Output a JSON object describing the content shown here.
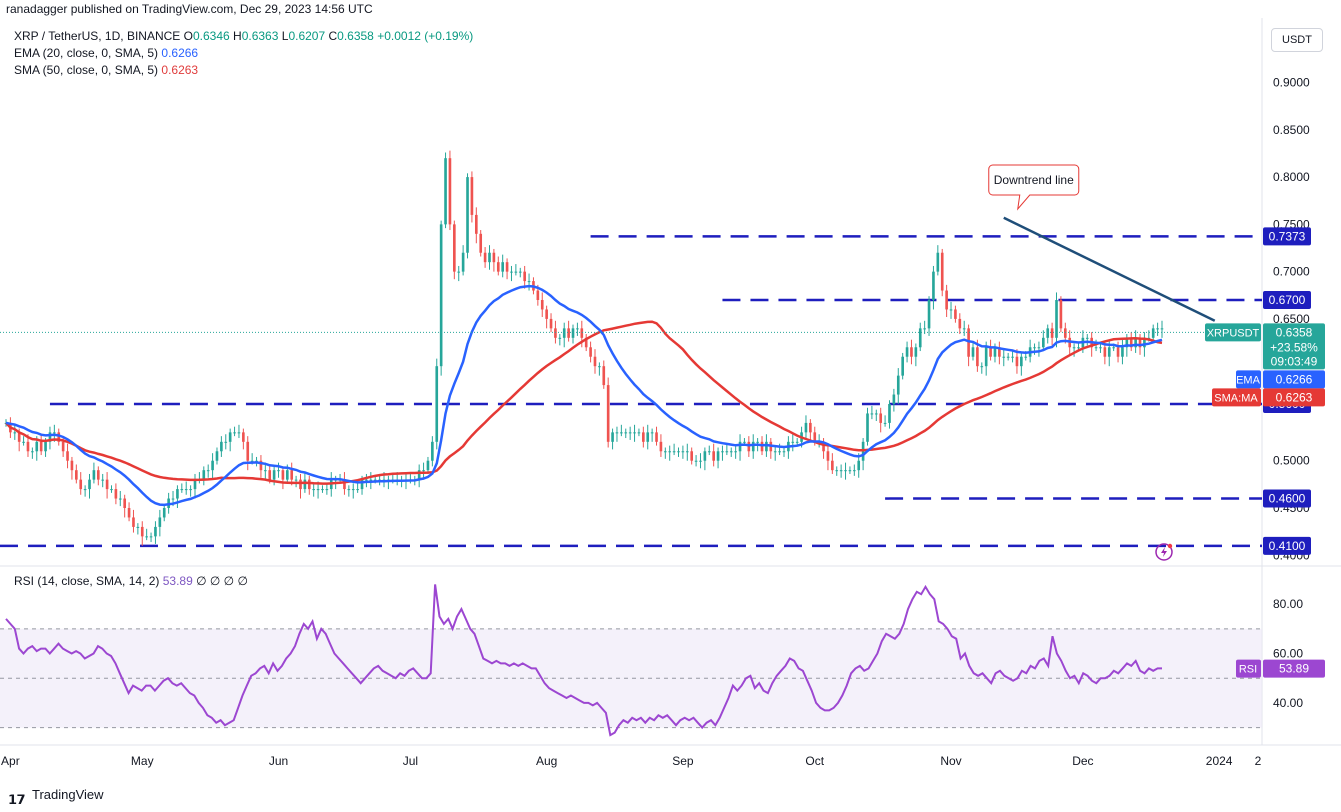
{
  "header": {
    "published": "ranadagger published on TradingView.com, Dec 29, 2023 14:56 UTC"
  },
  "legend": {
    "symbol": "XRP / TetherUS, 1D, BINANCE",
    "o_label": "O",
    "o": "0.6346",
    "h_label": "H",
    "h": "0.6363",
    "l_label": "L",
    "l": "0.6207",
    "c_label": "C",
    "c": "0.6358",
    "change": "+0.0012 (+0.19%)",
    "ema_label": "EMA (20, close, 0, SMA, 5)",
    "ema_value": "0.6266",
    "sma_label": "SMA (50, close, 0, SMA, 5)",
    "sma_value": "0.6263",
    "rsi_label": "RSI (14, close, SMA, 14, 2)",
    "rsi_value": "53.89",
    "rsi_extra": "∅ ∅ ∅ ∅"
  },
  "currency_button": "USDT",
  "footer": {
    "brand": "TradingView",
    "logo_icon": "tradingview-logo-icon"
  },
  "colors": {
    "up": "#26a69a",
    "down": "#ef5350",
    "ema": "#2962ff",
    "sma": "#e53935",
    "level_line": "#1e1ebe",
    "trend_line": "#1f4e79",
    "rsi": "#9c47d1",
    "rsi_band": "#ede7f6",
    "last_price": "#26a69a"
  },
  "chart_data": {
    "type": "candlestick",
    "symbol": "XRPUSDT",
    "timeframe": "1D",
    "x_labels": [
      "Apr",
      "May",
      "Jun",
      "Jul",
      "Aug",
      "Sep",
      "Oct",
      "Nov",
      "Dec",
      "2024",
      "2"
    ],
    "y_ticks": [
      "0.9000",
      "0.8500",
      "0.8000",
      "0.7500",
      "0.7000",
      "0.6500",
      "0.5000",
      "0.4500",
      "0.4000"
    ],
    "ylim": [
      0.395,
      0.945
    ],
    "close_series": [
      0.54,
      0.53,
      0.53,
      0.52,
      0.52,
      0.51,
      0.51,
      0.52,
      0.51,
      0.52,
      0.53,
      0.53,
      0.52,
      0.51,
      0.5,
      0.49,
      0.48,
      0.47,
      0.47,
      0.48,
      0.49,
      0.48,
      0.48,
      0.47,
      0.47,
      0.46,
      0.46,
      0.45,
      0.44,
      0.43,
      0.43,
      0.42,
      0.42,
      0.42,
      0.43,
      0.44,
      0.45,
      0.46,
      0.46,
      0.47,
      0.47,
      0.47,
      0.47,
      0.48,
      0.48,
      0.49,
      0.49,
      0.5,
      0.51,
      0.52,
      0.52,
      0.53,
      0.53,
      0.53,
      0.52,
      0.5,
      0.5,
      0.5,
      0.49,
      0.49,
      0.48,
      0.49,
      0.49,
      0.48,
      0.49,
      0.48,
      0.48,
      0.47,
      0.48,
      0.47,
      0.47,
      0.47,
      0.47,
      0.47,
      0.48,
      0.48,
      0.48,
      0.47,
      0.47,
      0.47,
      0.47,
      0.48,
      0.48,
      0.48,
      0.48,
      0.48,
      0.48,
      0.48,
      0.48,
      0.48,
      0.48,
      0.48,
      0.48,
      0.48,
      0.49,
      0.49,
      0.5,
      0.52,
      0.6,
      0.75,
      0.82,
      0.75,
      0.7,
      0.7,
      0.72,
      0.8,
      0.76,
      0.74,
      0.72,
      0.71,
      0.72,
      0.71,
      0.7,
      0.71,
      0.7,
      0.7,
      0.7,
      0.7,
      0.69,
      0.69,
      0.68,
      0.67,
      0.66,
      0.65,
      0.64,
      0.63,
      0.63,
      0.64,
      0.63,
      0.64,
      0.64,
      0.63,
      0.62,
      0.61,
      0.6,
      0.6,
      0.58,
      0.52,
      0.53,
      0.53,
      0.53,
      0.53,
      0.53,
      0.53,
      0.53,
      0.52,
      0.53,
      0.53,
      0.52,
      0.51,
      0.51,
      0.51,
      0.51,
      0.51,
      0.51,
      0.51,
      0.5,
      0.5,
      0.5,
      0.51,
      0.51,
      0.5,
      0.51,
      0.51,
      0.51,
      0.51,
      0.51,
      0.52,
      0.52,
      0.51,
      0.52,
      0.52,
      0.51,
      0.52,
      0.51,
      0.51,
      0.51,
      0.51,
      0.52,
      0.52,
      0.52,
      0.53,
      0.54,
      0.53,
      0.52,
      0.52,
      0.51,
      0.5,
      0.49,
      0.49,
      0.49,
      0.49,
      0.49,
      0.49,
      0.5,
      0.52,
      0.55,
      0.55,
      0.55,
      0.54,
      0.54,
      0.56,
      0.57,
      0.59,
      0.61,
      0.62,
      0.61,
      0.62,
      0.64,
      0.64,
      0.67,
      0.7,
      0.72,
      0.68,
      0.66,
      0.66,
      0.65,
      0.64,
      0.64,
      0.61,
      0.62,
      0.6,
      0.6,
      0.62,
      0.61,
      0.62,
      0.61,
      0.61,
      0.61,
      0.61,
      0.6,
      0.61,
      0.61,
      0.62,
      0.62,
      0.62,
      0.63,
      0.64,
      0.63,
      0.67,
      0.64,
      0.63,
      0.62,
      0.62,
      0.62,
      0.63,
      0.63,
      0.62,
      0.62,
      0.62,
      0.61,
      0.62,
      0.62,
      0.61,
      0.62,
      0.63,
      0.62,
      0.63,
      0.62,
      0.63,
      0.63,
      0.64,
      0.64,
      0.64
    ],
    "levels": [
      {
        "value": 0.7373,
        "label": "0.7373"
      },
      {
        "value": 0.67,
        "label": "0.6700"
      },
      {
        "value": 0.56,
        "label": "0.5600"
      },
      {
        "value": 0.46,
        "label": "0.4600"
      },
      {
        "value": 0.41,
        "label": "0.4100"
      }
    ],
    "trendline": {
      "from": {
        "date": "2023-11-13",
        "price": 0.757
      },
      "to": {
        "date": "2023-12-31",
        "price": 0.648
      }
    },
    "annotation": "Downtrend line",
    "last_price": {
      "label": "XRPUSDT",
      "value": "0.6358",
      "change": "+23.58%",
      "countdown": "09:03:49"
    },
    "ema_tag": {
      "label": "EMA",
      "value": "0.6266"
    },
    "sma_tag": {
      "label": "SMA:MA",
      "value": "0.6263"
    },
    "rsi": {
      "y_ticks": [
        "80.00",
        "60.00",
        "40.00"
      ],
      "ylim": [
        25,
        93
      ],
      "band": [
        30,
        70
      ],
      "tag_label": "RSI",
      "tag_value": "53.89",
      "values": [
        74,
        72,
        70,
        62,
        60,
        62,
        63,
        61,
        62,
        62,
        60,
        62,
        64,
        62,
        61,
        60,
        61,
        60,
        58,
        59,
        60,
        63,
        62,
        60,
        59,
        56,
        52,
        48,
        44,
        47,
        46,
        45,
        47,
        47,
        45,
        47,
        49,
        50,
        48,
        47,
        48,
        46,
        44,
        43,
        40,
        38,
        35,
        34,
        32,
        33,
        31,
        32,
        33,
        38,
        43,
        47,
        51,
        52,
        54,
        55,
        52,
        56,
        53,
        55,
        58,
        60,
        63,
        68,
        72,
        70,
        73,
        66,
        70,
        68,
        64,
        60,
        58,
        56,
        54,
        52,
        50,
        48,
        50,
        52,
        54,
        55,
        53,
        52,
        51,
        50,
        52,
        51,
        53,
        54,
        52,
        50,
        50,
        52,
        88,
        75,
        72,
        74,
        70,
        75,
        78,
        74,
        70,
        68,
        63,
        58,
        57,
        56,
        57,
        56,
        56,
        55,
        56,
        55,
        56,
        55,
        54,
        54,
        51,
        48,
        46,
        45,
        44,
        43,
        42,
        43,
        42,
        41,
        40,
        40,
        39,
        40,
        38,
        36,
        27,
        28,
        31,
        33,
        32,
        34,
        33,
        34,
        32,
        34,
        33,
        35,
        34,
        35,
        33,
        31,
        33,
        34,
        33,
        34,
        32,
        30,
        32,
        33,
        31,
        34,
        38,
        42,
        47,
        45,
        47,
        50,
        51,
        46,
        48,
        45,
        44,
        48,
        51,
        53,
        55,
        58,
        57,
        54,
        53,
        49,
        45,
        40,
        38,
        37,
        37,
        38,
        40,
        43,
        47,
        52,
        54,
        55,
        53,
        54,
        57,
        60,
        65,
        68,
        67,
        66,
        68,
        72,
        78,
        82,
        85,
        84,
        87,
        84,
        82,
        73,
        72,
        70,
        67,
        66,
        58,
        60,
        55,
        52,
        51,
        52,
        50,
        48,
        52,
        53,
        51,
        50,
        49,
        50,
        53,
        52,
        55,
        54,
        57,
        58,
        55,
        67,
        60,
        57,
        53,
        50,
        51,
        48,
        52,
        51,
        49,
        48,
        50,
        50,
        51,
        53,
        52,
        54,
        56,
        55,
        57,
        53,
        52,
        54,
        53,
        54,
        54
      ]
    }
  }
}
